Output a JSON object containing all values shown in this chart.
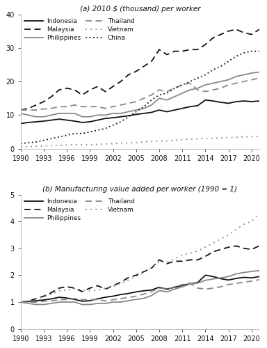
{
  "years": [
    1990,
    1991,
    1992,
    1993,
    1994,
    1995,
    1996,
    1997,
    1998,
    1999,
    2000,
    2001,
    2002,
    2003,
    2004,
    2005,
    2006,
    2007,
    2008,
    2009,
    2010,
    2011,
    2012,
    2013,
    2014,
    2015,
    2016,
    2017,
    2018,
    2019,
    2020,
    2021
  ],
  "panel_a_title": "(a) 2010 $ (thousand) per worker",
  "panel_b_title": "(b) Manufacturing value added per worker (1990 = 1)",
  "panel_a": {
    "Indonesia": [
      7.5,
      7.8,
      8.0,
      8.2,
      8.5,
      8.8,
      8.5,
      8.2,
      7.8,
      8.0,
      8.5,
      9.0,
      9.2,
      9.5,
      9.8,
      10.2,
      10.5,
      10.8,
      11.5,
      11.0,
      11.5,
      12.0,
      12.5,
      12.8,
      14.5,
      14.2,
      13.8,
      13.5,
      14.0,
      14.2,
      14.0,
      14.2
    ],
    "Malaysia": [
      11.5,
      12.0,
      13.0,
      14.0,
      15.5,
      17.5,
      18.0,
      17.5,
      16.0,
      17.5,
      18.5,
      17.0,
      18.5,
      20.0,
      22.0,
      23.0,
      24.5,
      26.0,
      29.5,
      28.0,
      29.0,
      29.0,
      29.5,
      29.5,
      31.0,
      33.0,
      34.0,
      35.0,
      35.5,
      34.5,
      34.0,
      35.5
    ],
    "Philippines": [
      10.5,
      10.0,
      9.5,
      9.5,
      10.0,
      10.5,
      10.5,
      10.5,
      9.5,
      9.5,
      10.0,
      10.0,
      10.5,
      10.5,
      11.0,
      11.5,
      12.0,
      13.0,
      15.0,
      14.5,
      15.5,
      16.5,
      17.5,
      18.0,
      19.0,
      19.5,
      20.0,
      20.5,
      21.5,
      22.0,
      22.5,
      22.8
    ],
    "Thailand": [
      11.5,
      11.5,
      11.5,
      11.8,
      12.0,
      12.5,
      12.5,
      13.0,
      12.5,
      12.5,
      12.5,
      12.0,
      12.5,
      13.0,
      13.5,
      14.0,
      15.0,
      16.0,
      17.5,
      17.0,
      18.0,
      19.0,
      19.5,
      17.5,
      17.0,
      17.5,
      18.0,
      19.0,
      19.5,
      20.0,
      20.5,
      21.0
    ],
    "Vietnam": [
      0.5,
      0.6,
      0.7,
      0.8,
      0.9,
      1.0,
      1.1,
      1.2,
      1.2,
      1.2,
      1.3,
      1.4,
      1.5,
      1.6,
      1.7,
      1.8,
      2.0,
      2.2,
      2.3,
      2.3,
      2.5,
      2.7,
      2.8,
      2.9,
      3.0,
      3.1,
      3.2,
      3.3,
      3.4,
      3.5,
      3.6,
      3.7
    ],
    "China": [
      1.5,
      1.8,
      2.0,
      2.5,
      3.0,
      3.5,
      4.0,
      4.5,
      4.5,
      5.0,
      5.5,
      6.0,
      7.0,
      8.0,
      9.5,
      11.0,
      12.5,
      14.5,
      16.0,
      16.5,
      18.0,
      19.0,
      20.0,
      21.0,
      22.0,
      23.5,
      24.5,
      26.0,
      27.5,
      28.5,
      29.0,
      29.0
    ]
  },
  "panel_b": {
    "Indonesia": [
      1.0,
      1.02,
      1.05,
      1.08,
      1.12,
      1.18,
      1.15,
      1.1,
      1.03,
      1.05,
      1.12,
      1.18,
      1.22,
      1.28,
      1.32,
      1.38,
      1.42,
      1.45,
      1.55,
      1.48,
      1.55,
      1.62,
      1.68,
      1.73,
      2.0,
      1.95,
      1.87,
      1.82,
      1.88,
      1.92,
      1.9,
      1.95
    ],
    "Malaysia": [
      1.0,
      1.04,
      1.13,
      1.22,
      1.35,
      1.52,
      1.57,
      1.52,
      1.39,
      1.52,
      1.61,
      1.48,
      1.61,
      1.74,
      1.91,
      2.0,
      2.13,
      2.26,
      2.57,
      2.43,
      2.52,
      2.52,
      2.57,
      2.57,
      2.7,
      2.87,
      2.96,
      3.04,
      3.09,
      3.0,
      2.96,
      3.09
    ],
    "Philippines": [
      1.0,
      0.95,
      0.91,
      0.91,
      0.95,
      1.0,
      1.0,
      1.0,
      0.91,
      0.91,
      0.95,
      0.95,
      1.0,
      1.0,
      1.05,
      1.1,
      1.14,
      1.24,
      1.43,
      1.38,
      1.48,
      1.57,
      1.67,
      1.71,
      1.81,
      1.86,
      1.9,
      1.95,
      2.05,
      2.1,
      2.14,
      2.17
    ],
    "Thailand": [
      1.0,
      1.0,
      1.0,
      1.03,
      1.04,
      1.09,
      1.09,
      1.13,
      1.09,
      1.09,
      1.09,
      1.04,
      1.09,
      1.13,
      1.17,
      1.22,
      1.3,
      1.39,
      1.52,
      1.48,
      1.57,
      1.65,
      1.7,
      1.52,
      1.48,
      1.52,
      1.57,
      1.65,
      1.7,
      1.74,
      1.78,
      1.83
    ],
    "Vietnam": [
      1.0,
      1.05,
      1.12,
      1.2,
      1.3,
      1.42,
      1.45,
      1.5,
      1.45,
      1.42,
      1.45,
      1.52,
      1.58,
      1.7,
      1.82,
      1.95,
      2.1,
      2.3,
      2.5,
      2.48,
      2.62,
      2.75,
      2.82,
      2.9,
      3.05,
      3.2,
      3.35,
      3.5,
      3.7,
      3.9,
      4.0,
      4.3
    ]
  },
  "panel_a_ylim": [
    0,
    40
  ],
  "panel_a_yticks": [
    0,
    10,
    20,
    30,
    40
  ],
  "panel_b_ylim": [
    0,
    5
  ],
  "panel_b_yticks": [
    0,
    1,
    2,
    3,
    4,
    5
  ],
  "xticks": [
    1990,
    1993,
    1996,
    1999,
    2002,
    2005,
    2008,
    2011,
    2014,
    2017,
    2020
  ],
  "bg_color": "#ffffff",
  "text_color": "#111111",
  "font_size": 7.0,
  "legend_font_size": 6.5,
  "title_font_size": 7.5
}
